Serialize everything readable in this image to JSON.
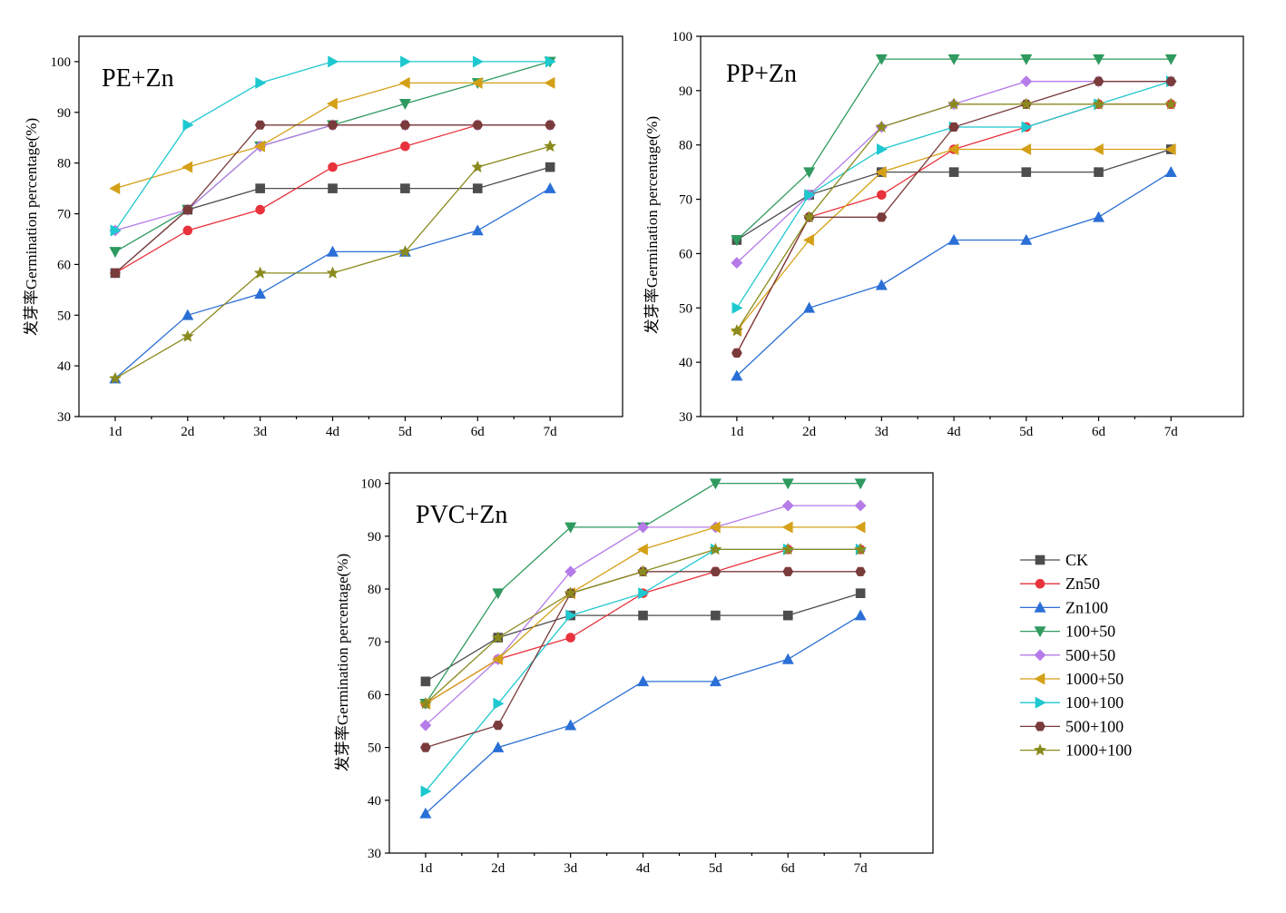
{
  "chart_data": [
    {
      "type": "line",
      "title": "PE+Zn",
      "ylabel": "发芽率Germination percentage(%)",
      "xlabel": "",
      "categories": [
        "1d",
        "2d",
        "3d",
        "4d",
        "5d",
        "6d",
        "7d"
      ],
      "ylim": [
        30,
        105
      ],
      "yticks": [
        30,
        40,
        50,
        60,
        70,
        80,
        90,
        100
      ],
      "grid": false,
      "series": [
        {
          "name": "CK",
          "values": [
            58.3,
            70.8,
            75,
            75,
            75,
            75,
            79.2
          ]
        },
        {
          "name": "Zn50",
          "values": [
            58.3,
            66.7,
            70.8,
            79.2,
            83.3,
            87.5,
            87.5
          ]
        },
        {
          "name": "Zn100",
          "values": [
            37.5,
            50,
            54.2,
            62.5,
            62.5,
            66.7,
            75
          ]
        },
        {
          "name": "100+50",
          "values": [
            62.5,
            70.8,
            83.3,
            87.5,
            91.7,
            95.8,
            100
          ]
        },
        {
          "name": "500+50",
          "values": [
            66.7,
            70.8,
            83.3,
            87.5,
            87.5,
            87.5,
            87.5
          ]
        },
        {
          "name": "1000+50",
          "values": [
            75,
            79.2,
            83.3,
            91.7,
            95.8,
            95.8,
            95.8
          ]
        },
        {
          "name": "100+100",
          "values": [
            66.7,
            87.5,
            95.8,
            100,
            100,
            100,
            100
          ]
        },
        {
          "name": "500+100",
          "values": [
            58.3,
            70.8,
            87.5,
            87.5,
            87.5,
            87.5,
            87.5
          ]
        },
        {
          "name": "1000+100",
          "values": [
            37.5,
            45.8,
            58.3,
            58.3,
            62.5,
            79.2,
            83.3
          ]
        }
      ]
    },
    {
      "type": "line",
      "title": "PP+Zn",
      "ylabel": "发芽率Germination percentage(%)",
      "xlabel": "",
      "categories": [
        "1d",
        "2d",
        "3d",
        "4d",
        "5d",
        "6d",
        "7d"
      ],
      "ylim": [
        30,
        100
      ],
      "yticks": [
        30,
        40,
        50,
        60,
        70,
        80,
        90,
        100
      ],
      "grid": false,
      "series": [
        {
          "name": "CK",
          "values": [
            62.5,
            70.8,
            75,
            75,
            75,
            75,
            79.2
          ]
        },
        {
          "name": "Zn50",
          "values": [
            41.7,
            66.7,
            70.8,
            79.2,
            83.3,
            87.5,
            87.5
          ]
        },
        {
          "name": "Zn100",
          "values": [
            37.5,
            50,
            54.2,
            62.5,
            62.5,
            66.7,
            75
          ]
        },
        {
          "name": "100+50",
          "values": [
            62.5,
            75,
            95.8,
            95.8,
            95.8,
            95.8,
            95.8
          ]
        },
        {
          "name": "500+50",
          "values": [
            58.3,
            70.8,
            83.3,
            87.5,
            91.7,
            91.7,
            91.7
          ]
        },
        {
          "name": "1000+50",
          "values": [
            45.8,
            62.5,
            75,
            79.2,
            79.2,
            79.2,
            79.2
          ]
        },
        {
          "name": "100+100",
          "values": [
            50,
            70.8,
            79.2,
            83.3,
            83.3,
            87.5,
            91.7
          ]
        },
        {
          "name": "500+100",
          "values": [
            41.7,
            66.7,
            66.7,
            83.3,
            87.5,
            91.7,
            91.7
          ]
        },
        {
          "name": "1000+100",
          "values": [
            45.8,
            66.7,
            83.3,
            87.5,
            87.5,
            87.5,
            87.5
          ]
        }
      ]
    },
    {
      "type": "line",
      "title": "PVC+Zn",
      "ylabel": "发芽率Germination percentage(%)",
      "xlabel": "",
      "categories": [
        "1d",
        "2d",
        "3d",
        "4d",
        "5d",
        "6d",
        "7d"
      ],
      "ylim": [
        30,
        102
      ],
      "yticks": [
        30,
        40,
        50,
        60,
        70,
        80,
        90,
        100
      ],
      "grid": false,
      "series": [
        {
          "name": "CK",
          "values": [
            62.5,
            70.8,
            75,
            75,
            75,
            75,
            79.2
          ]
        },
        {
          "name": "Zn50",
          "values": [
            58.3,
            66.7,
            70.8,
            79.2,
            83.3,
            87.5,
            87.5
          ]
        },
        {
          "name": "Zn100",
          "values": [
            37.5,
            50,
            54.2,
            62.5,
            62.5,
            66.7,
            75
          ]
        },
        {
          "name": "100+50",
          "values": [
            58.3,
            79.2,
            91.7,
            91.7,
            100,
            100,
            100
          ]
        },
        {
          "name": "500+50",
          "values": [
            54.2,
            66.7,
            83.3,
            91.7,
            91.7,
            95.8,
            95.8
          ]
        },
        {
          "name": "1000+50",
          "values": [
            58.3,
            66.7,
            79.2,
            87.5,
            91.7,
            91.7,
            91.7
          ]
        },
        {
          "name": "100+100",
          "values": [
            41.7,
            58.3,
            75,
            79.2,
            87.5,
            87.5,
            87.5
          ]
        },
        {
          "name": "500+100",
          "values": [
            50,
            54.2,
            79.2,
            83.3,
            83.3,
            83.3,
            83.3
          ]
        },
        {
          "name": "1000+100",
          "values": [
            58.3,
            70.8,
            79.2,
            83.3,
            87.5,
            87.5,
            87.5
          ]
        }
      ]
    }
  ],
  "legend": {
    "placement": "right of bottom panel",
    "entries": [
      {
        "name": "CK",
        "color": "#4d4d4d",
        "marker": "square"
      },
      {
        "name": "Zn50",
        "color": "#e8323c",
        "marker": "circle"
      },
      {
        "name": "Zn100",
        "color": "#2a6fd6",
        "marker": "triangle-up"
      },
      {
        "name": "100+50",
        "color": "#2f9a5f",
        "marker": "triangle-down"
      },
      {
        "name": "500+50",
        "color": "#b57be8",
        "marker": "diamond"
      },
      {
        "name": "1000+50",
        "color": "#d4a017",
        "marker": "triangle-left"
      },
      {
        "name": "100+100",
        "color": "#1ec8cf",
        "marker": "triangle-right"
      },
      {
        "name": "500+100",
        "color": "#7a3b3b",
        "marker": "hexagon"
      },
      {
        "name": "1000+100",
        "color": "#8a8a1e",
        "marker": "star"
      }
    ]
  }
}
